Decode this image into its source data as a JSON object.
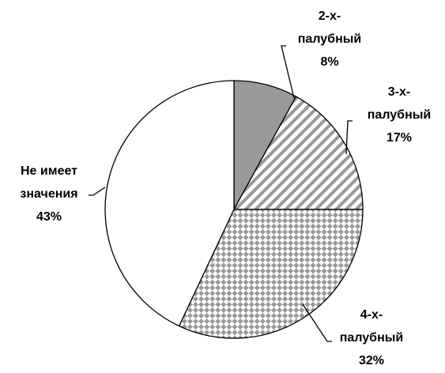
{
  "chart_data": {
    "type": "pie",
    "categories": [
      "2-х-палубный",
      "3-х-палубный",
      "4-х-палубный",
      "Не имеет значения"
    ],
    "values": [
      8,
      17,
      32,
      43
    ],
    "value_labels": [
      "8%",
      "17%",
      "32%",
      "43%"
    ],
    "patterns": [
      "solid",
      "stripes",
      "checker",
      "none"
    ],
    "color": "#999999"
  }
}
